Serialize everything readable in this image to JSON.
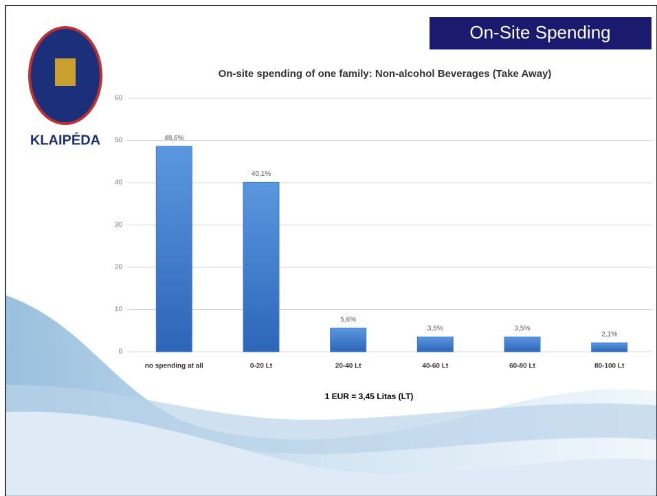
{
  "header": {
    "title": "On-Site Spending"
  },
  "logo": {
    "name": "KLAIPÉDA"
  },
  "note": "1 EUR = 3,45 Litas (LT)",
  "chart_data": {
    "type": "bar",
    "title": "On-site spending of one family: Non-alcohol Beverages (Take Away)",
    "categories": [
      "no spending at  all",
      "0-20 Lt",
      "20-40 Lt",
      "40-60 Lt",
      "60-80 Lt",
      "80-100 Lt"
    ],
    "values": [
      48.6,
      40.1,
      5.6,
      3.5,
      3.5,
      2.1
    ],
    "value_labels": [
      "48,6%",
      "40,1%",
      "5,6%",
      "3,5%",
      "3,5%",
      "2,1%"
    ],
    "color": "#3a78cc",
    "ylim": [
      0,
      60
    ],
    "yticks": [
      0,
      10,
      20,
      30,
      40,
      50,
      60
    ],
    "grid": true
  }
}
